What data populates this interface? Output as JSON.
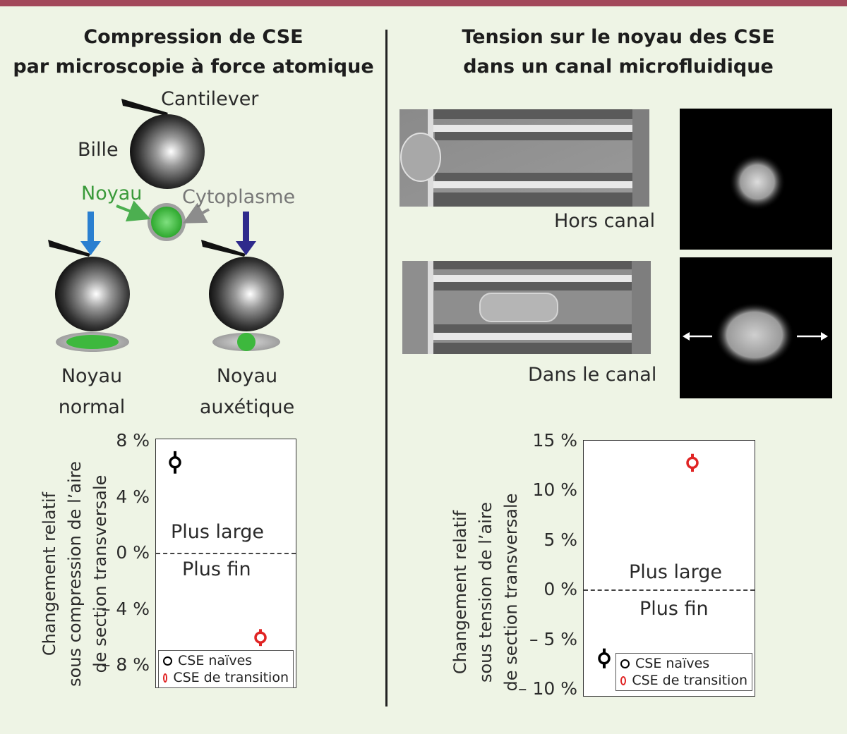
{
  "left_panel": {
    "title_line1": "Compression de CSE",
    "title_line2": "par microscopie à force atomique",
    "labels": {
      "cantilever": "Cantilever",
      "bead": "Bille",
      "nucleus": "Noyau",
      "cytoplasm": "Cytoplasme",
      "normal_line1": "Noyau",
      "normal_line2": "normal",
      "auxetic_line1": "Noyau",
      "auxetic_line2": "auxétique"
    },
    "colors": {
      "nucleus": "#3db83d",
      "arrow_normal": "#2a7fd0",
      "arrow_auxetic": "#2e2a8c",
      "arrow_nucleus": "#4caf50",
      "arrow_cytoplasm": "#8c8c8c"
    }
  },
  "right_panel": {
    "title_line1": "Tension sur le noyau des CSE",
    "title_line2": "dans un canal microfluidique",
    "labels": {
      "outside": "Hors canal",
      "inside": "Dans le canal"
    }
  },
  "chart_data": [
    {
      "type": "scatter",
      "ylabel_line1": "Changement relatif",
      "ylabel_line2": "sous compression de l’aire",
      "ylabel_line3": "de section transversale",
      "yticks": [
        "8 %",
        "4 %",
        "0 %",
        "– 4 %",
        "– 8 %"
      ],
      "ylim": [
        -8,
        8
      ],
      "annotations": {
        "above": "Plus large",
        "below": "Plus fin"
      },
      "series": [
        {
          "name": "CSE naïves",
          "color": "#000000",
          "value": 6.3,
          "error": 0.8
        },
        {
          "name": "CSE de transition",
          "color": "#e02424",
          "value": -6.2,
          "error": 0.6
        }
      ]
    },
    {
      "type": "scatter",
      "ylabel_line1": "Changement relatif",
      "ylabel_line2": "sous tension de l’aire",
      "ylabel_line3": "de section transversale",
      "yticks": [
        "15 %",
        "10 %",
        "5 %",
        "0 %",
        "– 5 %",
        "– 10 %"
      ],
      "ylim": [
        -10,
        15
      ],
      "annotations": {
        "above": "Plus large",
        "below": "Plus fin"
      },
      "series": [
        {
          "name": "CSE naïves",
          "color": "#000000",
          "value": -7.0,
          "error": 1.0
        },
        {
          "name": "CSE de transition",
          "color": "#e02424",
          "value": 12.7,
          "error": 0.9
        }
      ]
    }
  ]
}
